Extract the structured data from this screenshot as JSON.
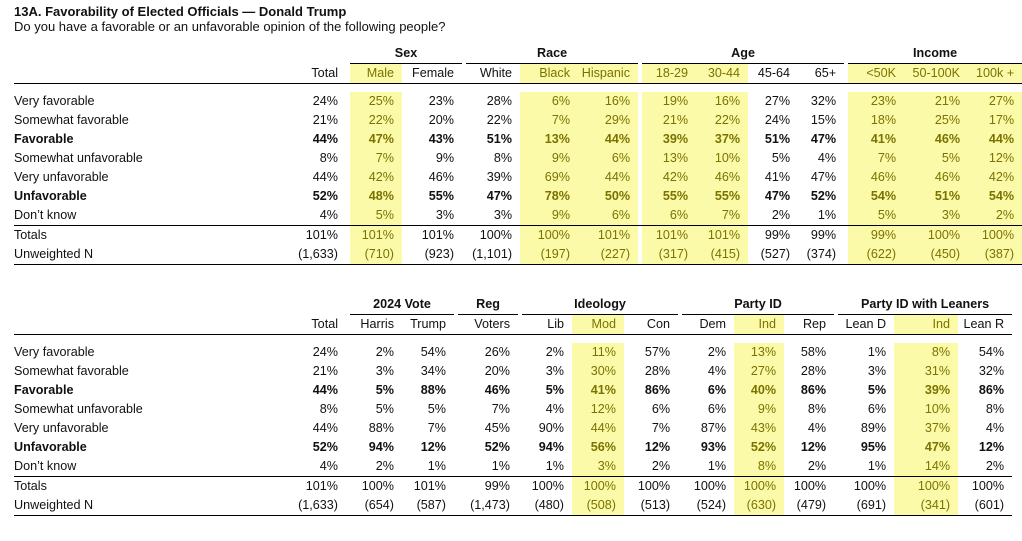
{
  "title": "13A. Favorability of Elected Officials — Donald Trump",
  "subtitle": "Do you have a favorable or an unfavorable opinion of the following people?",
  "highlight_color": "#fbfaa9",
  "table1": {
    "groups": [
      "Sex",
      "Race",
      "Age",
      "Income"
    ],
    "headers": [
      "Total",
      "Male",
      "Female",
      "White",
      "Black",
      "Hispanic",
      "18-29",
      "30-44",
      "45-64",
      "65+",
      "<50K",
      "50-100K",
      "100k +"
    ],
    "rows": [
      {
        "label": "Very favorable",
        "values": [
          "24%",
          "25%",
          "23%",
          "28%",
          "6%",
          "16%",
          "19%",
          "16%",
          "27%",
          "32%",
          "23%",
          "21%",
          "27%"
        ]
      },
      {
        "label": "Somewhat favorable",
        "values": [
          "21%",
          "22%",
          "20%",
          "22%",
          "7%",
          "29%",
          "21%",
          "22%",
          "24%",
          "15%",
          "18%",
          "25%",
          "17%"
        ]
      },
      {
        "label": "Favorable",
        "values": [
          "44%",
          "47%",
          "43%",
          "51%",
          "13%",
          "44%",
          "39%",
          "37%",
          "51%",
          "47%",
          "41%",
          "46%",
          "44%"
        ]
      },
      {
        "label": "Somewhat unfavorable",
        "values": [
          "8%",
          "7%",
          "9%",
          "8%",
          "9%",
          "6%",
          "13%",
          "10%",
          "5%",
          "4%",
          "7%",
          "5%",
          "12%"
        ]
      },
      {
        "label": "Very unfavorable",
        "values": [
          "44%",
          "42%",
          "46%",
          "39%",
          "69%",
          "44%",
          "42%",
          "46%",
          "41%",
          "47%",
          "46%",
          "46%",
          "42%"
        ]
      },
      {
        "label": "Unfavorable",
        "values": [
          "52%",
          "48%",
          "55%",
          "47%",
          "78%",
          "50%",
          "55%",
          "55%",
          "47%",
          "52%",
          "54%",
          "51%",
          "54%"
        ]
      },
      {
        "label": "Don’t know",
        "values": [
          "4%",
          "5%",
          "3%",
          "3%",
          "9%",
          "6%",
          "6%",
          "7%",
          "2%",
          "1%",
          "5%",
          "3%",
          "2%"
        ]
      }
    ],
    "totals": {
      "label": "Totals",
      "values": [
        "101%",
        "101%",
        "101%",
        "100%",
        "100%",
        "101%",
        "101%",
        "101%",
        "99%",
        "99%",
        "99%",
        "100%",
        "100%"
      ]
    },
    "unweighted": {
      "label": "Unweighted N",
      "values": [
        "(1,633)",
        "(710)",
        "(923)",
        "(1,101)",
        "(197)",
        "(227)",
        "(317)",
        "(415)",
        "(527)",
        "(374)",
        "(622)",
        "(450)",
        "(387)"
      ]
    }
  },
  "table2": {
    "groups": [
      "2024 Vote",
      "Reg",
      "Ideology",
      "Party ID",
      "Party ID with Leaners"
    ],
    "headers": [
      "Total",
      "Harris",
      "Trump",
      "Voters",
      "Lib",
      "Mod",
      "Con",
      "Dem",
      "Ind",
      "Rep",
      "Lean D",
      "Ind",
      "Lean R"
    ],
    "rows": [
      {
        "label": "Very favorable",
        "values": [
          "24%",
          "2%",
          "54%",
          "26%",
          "2%",
          "11%",
          "57%",
          "2%",
          "13%",
          "58%",
          "1%",
          "8%",
          "54%"
        ]
      },
      {
        "label": "Somewhat favorable",
        "values": [
          "21%",
          "3%",
          "34%",
          "20%",
          "3%",
          "30%",
          "28%",
          "4%",
          "27%",
          "28%",
          "3%",
          "31%",
          "32%"
        ]
      },
      {
        "label": "Favorable",
        "values": [
          "44%",
          "5%",
          "88%",
          "46%",
          "5%",
          "41%",
          "86%",
          "6%",
          "40%",
          "86%",
          "5%",
          "39%",
          "86%"
        ]
      },
      {
        "label": "Somewhat unfavorable",
        "values": [
          "8%",
          "5%",
          "5%",
          "7%",
          "4%",
          "12%",
          "6%",
          "6%",
          "9%",
          "8%",
          "6%",
          "10%",
          "8%"
        ]
      },
      {
        "label": "Very unfavorable",
        "values": [
          "44%",
          "88%",
          "7%",
          "45%",
          "90%",
          "44%",
          "7%",
          "87%",
          "43%",
          "4%",
          "89%",
          "37%",
          "4%"
        ]
      },
      {
        "label": "Unfavorable",
        "values": [
          "52%",
          "94%",
          "12%",
          "52%",
          "94%",
          "56%",
          "12%",
          "93%",
          "52%",
          "12%",
          "95%",
          "47%",
          "12%"
        ]
      },
      {
        "label": "Don’t know",
        "values": [
          "4%",
          "2%",
          "1%",
          "1%",
          "1%",
          "3%",
          "2%",
          "1%",
          "8%",
          "2%",
          "1%",
          "14%",
          "2%"
        ]
      }
    ],
    "totals": {
      "label": "Totals",
      "values": [
        "101%",
        "100%",
        "101%",
        "99%",
        "100%",
        "100%",
        "100%",
        "100%",
        "100%",
        "100%",
        "100%",
        "100%",
        "100%"
      ]
    },
    "unweighted": {
      "label": "Unweighted N",
      "values": [
        "(1,633)",
        "(654)",
        "(587)",
        "(1,473)",
        "(480)",
        "(508)",
        "(513)",
        "(524)",
        "(630)",
        "(479)",
        "(691)",
        "(341)",
        "(601)"
      ]
    }
  }
}
